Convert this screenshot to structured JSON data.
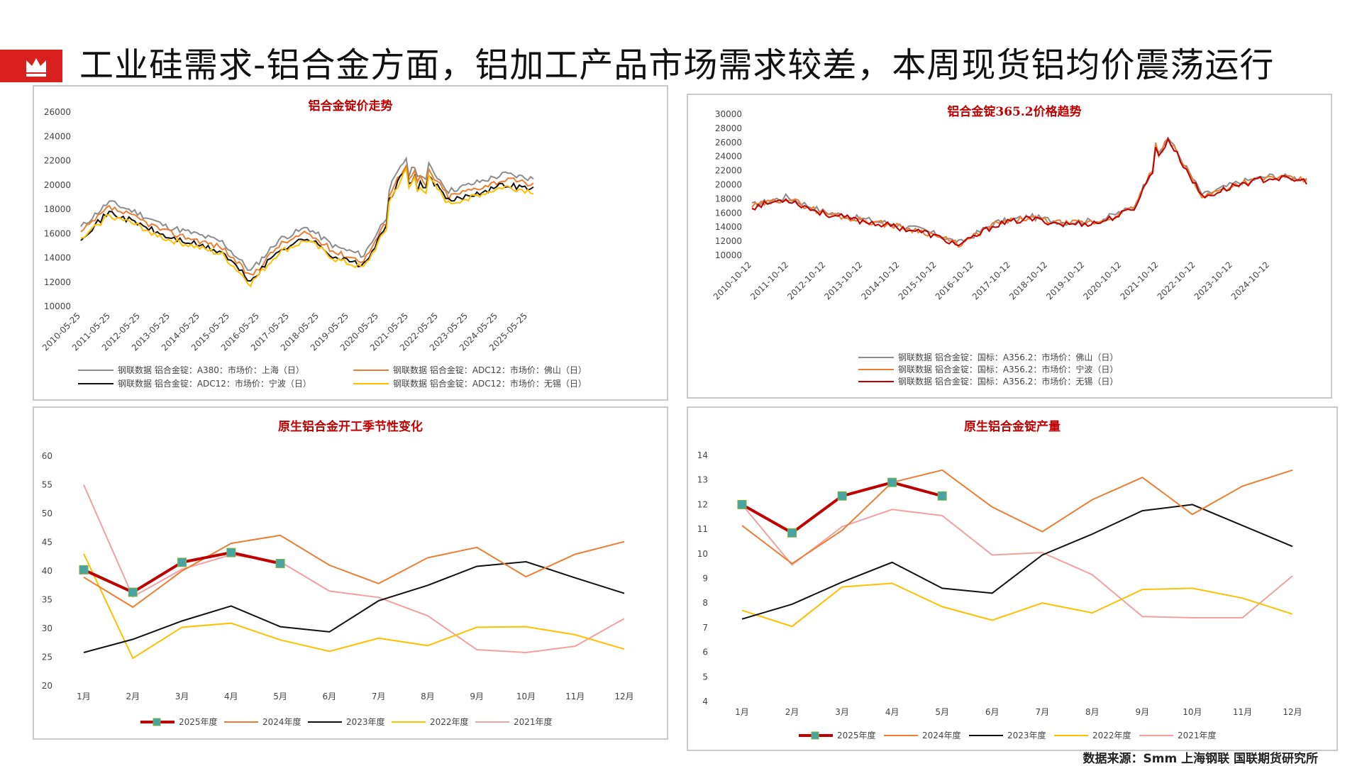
{
  "header": {
    "title": "工业硅需求-铝合金方面，铝加工产品市场需求较差，本周现货铝均价震荡运行",
    "flag_color": "#d8201f"
  },
  "footer": {
    "source": "数据来源：Smm 上海钢联 国联期货研究所"
  },
  "colors": {
    "red": "#c00000",
    "orange": "#ed7d31",
    "black": "#111111",
    "yellow": "#ffc000",
    "pink": "#f4a0a0",
    "gray": "#8c8c8c"
  },
  "charts": {
    "alloy_price": {
      "type": "line",
      "title": "铝合金锭价走势",
      "yticks": [
        "26000",
        "24000",
        "22000",
        "20000",
        "18000",
        "16000",
        "14000",
        "12000",
        "10000"
      ],
      "ylim": [
        10000,
        26000
      ],
      "xticks": [
        "2010-05-25",
        "2011-05-25",
        "2012-05-25",
        "2013-05-25",
        "2014-05-25",
        "2015-05-25",
        "2016-05-25",
        "2017-05-25",
        "2018-05-25",
        "2019-05-25",
        "2020-05-25",
        "2021-05-25",
        "2022-05-25",
        "2023-05-25",
        "2024-05-25",
        "2025-05-25"
      ],
      "legend": [
        "钢联数据 铝合金锭：A380：市场价：上海（日）",
        "钢联数据 铝合金锭：ADC12：市场价：佛山（日）",
        "钢联数据 铝合金锭：ADC12：市场价：宁波（日）",
        "钢联数据 铝合金锭：ADC12：市场价：无锡（日）"
      ]
    },
    "a356_price": {
      "type": "line",
      "title": "铝合金锭365.2价格趋势",
      "yticks": [
        "30000",
        "28000",
        "26000",
        "24000",
        "22000",
        "20000",
        "18000",
        "16000",
        "14000",
        "12000",
        "10000"
      ],
      "ylim": [
        10000,
        30000
      ],
      "xticks": [
        "2010-10-12",
        "2011-10-12",
        "2012-10-12",
        "2013-10-12",
        "2014-10-12",
        "2015-10-12",
        "2016-10-12",
        "2017-10-12",
        "2018-10-12",
        "2019-10-12",
        "2020-10-12",
        "2021-10-12",
        "2022-10-12",
        "2023-10-12",
        "2024-10-12"
      ],
      "legend": [
        "钢联数据 铝合金锭：国标：A356.2：市场价：佛山（日）",
        "钢联数据 铝合金锭：国标：A356.2：市场价：宁波（日）",
        "钢联数据 铝合金锭：国标：A356.2：市场价：无锡（日）"
      ]
    },
    "operating_rate": {
      "type": "line",
      "title": "原生铝合金开工季节性变化",
      "yticks": [
        "60",
        "55",
        "50",
        "45",
        "40",
        "35",
        "30",
        "25",
        "20"
      ],
      "ylim": [
        20,
        60
      ],
      "categories": [
        "1月",
        "2月",
        "3月",
        "4月",
        "5月",
        "6月",
        "7月",
        "8月",
        "9月",
        "10月",
        "11月",
        "12月"
      ],
      "series": [
        {
          "name": "2025年度",
          "values": [
            40.2,
            36.3,
            41.5,
            43.2,
            41.3
          ]
        },
        {
          "name": "2024年度",
          "values": [
            38.9,
            33.7,
            40.0,
            44.8,
            46.2,
            41.0,
            37.8,
            42.3,
            44.1,
            39.0,
            42.9,
            45.1
          ]
        },
        {
          "name": "2023年度",
          "values": [
            25.8,
            28.1,
            31.3,
            33.9,
            30.3,
            29.4,
            34.8,
            37.5,
            40.8,
            41.6,
            38.8,
            36.1
          ]
        },
        {
          "name": "2022年度",
          "values": [
            43.0,
            24.8,
            30.2,
            30.9,
            28.0,
            26.0,
            28.3,
            27.0,
            30.2,
            30.3,
            28.9,
            26.4
          ]
        },
        {
          "name": "2021年度",
          "values": [
            55.0,
            35.5,
            40.3,
            42.8,
            41.6,
            36.5,
            35.4,
            32.2,
            26.3,
            25.8,
            26.9,
            31.7
          ]
        }
      ]
    },
    "production": {
      "type": "line",
      "title": "原生铝合金锭产量",
      "yticks": [
        "14",
        "13",
        "12",
        "11",
        "10",
        "9",
        "8",
        "7",
        "6",
        "5",
        "4"
      ],
      "ylim": [
        4,
        14
      ],
      "categories": [
        "1月",
        "2月",
        "3月",
        "4月",
        "5月",
        "6月",
        "7月",
        "8月",
        "9月",
        "10月",
        "11月",
        "12月"
      ],
      "series": [
        {
          "name": "2025年度",
          "values": [
            12.0,
            10.85,
            12.35,
            12.9,
            12.35
          ]
        },
        {
          "name": "2024年度",
          "values": [
            11.15,
            9.6,
            10.95,
            12.9,
            13.4,
            11.9,
            10.9,
            12.2,
            13.1,
            11.6,
            12.75,
            13.4
          ]
        },
        {
          "name": "2023年度",
          "values": [
            7.35,
            7.95,
            8.85,
            9.65,
            8.6,
            8.4,
            9.95,
            10.8,
            11.75,
            12.0,
            11.15,
            10.3
          ]
        },
        {
          "name": "2022年度",
          "values": [
            7.7,
            7.05,
            8.65,
            8.8,
            7.85,
            7.3,
            8.0,
            7.6,
            8.55,
            8.6,
            8.2,
            7.55
          ]
        },
        {
          "name": "2021年度",
          "values": [
            12.0,
            9.55,
            11.1,
            11.8,
            11.55,
            9.95,
            10.05,
            9.15,
            7.45,
            7.4,
            7.4,
            9.1
          ]
        }
      ]
    }
  }
}
